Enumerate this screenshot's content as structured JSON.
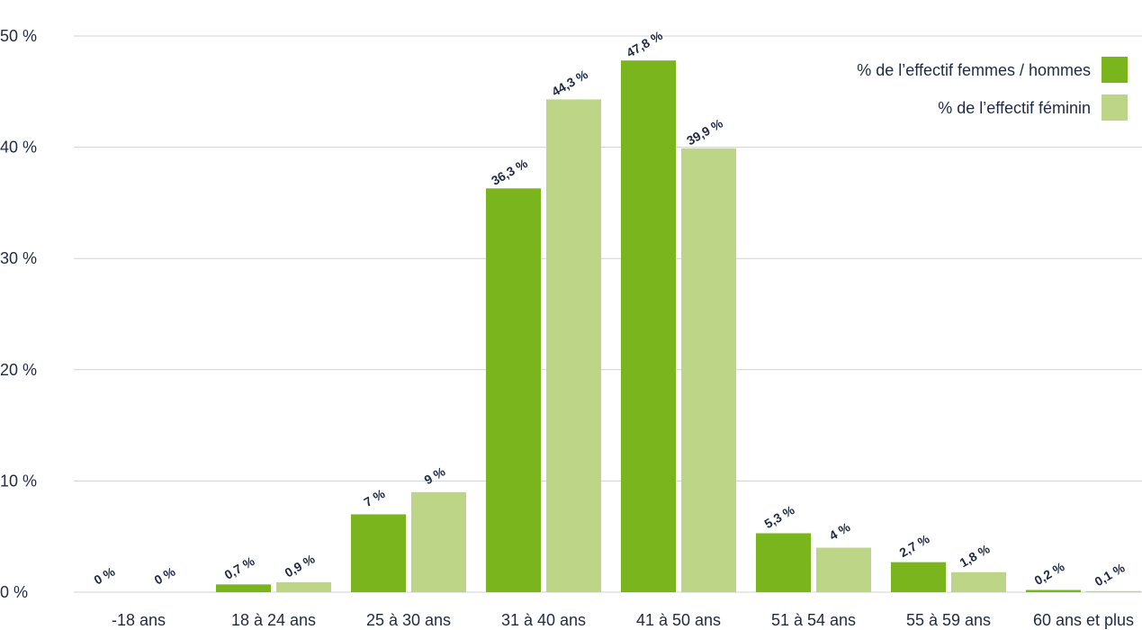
{
  "chart_data": {
    "type": "bar",
    "categories": [
      "-18 ans",
      "18 à 24 ans",
      "25 à 30 ans",
      "31 à 40 ans",
      "41 à 50 ans",
      "51 à 54 ans",
      "55 à 59 ans",
      "60 ans et plus"
    ],
    "series": [
      {
        "name": "% de l’effectif femmes / hommes",
        "color": "#7ab51d",
        "values": [
          0,
          0.7,
          7,
          36.3,
          47.8,
          5.3,
          2.7,
          0.2
        ],
        "labels": [
          "0 %",
          "0,7 %",
          "7 %",
          "36,3 %",
          "47,8 %",
          "5,3 %",
          "2,7 %",
          "0,2 %"
        ]
      },
      {
        "name": "% de l’effectif féminin",
        "color": "#bcd586",
        "values": [
          0,
          0.9,
          9,
          44.3,
          39.9,
          4,
          1.8,
          0.1
        ],
        "labels": [
          "0 %",
          "0,9 %",
          "9 %",
          "44,3 %",
          "39,9 %",
          "4 %",
          "1,8 %",
          "0,1 %"
        ]
      }
    ],
    "yticks": [
      0,
      10,
      20,
      30,
      40,
      50
    ],
    "ytick_labels": [
      "0 %",
      "10 %",
      "20 %",
      "30 %",
      "40 %",
      "50 %"
    ],
    "ylim": [
      0,
      50
    ],
    "grid": true,
    "legend_position": "top-right",
    "title": "",
    "xlabel": "",
    "ylabel": ""
  }
}
